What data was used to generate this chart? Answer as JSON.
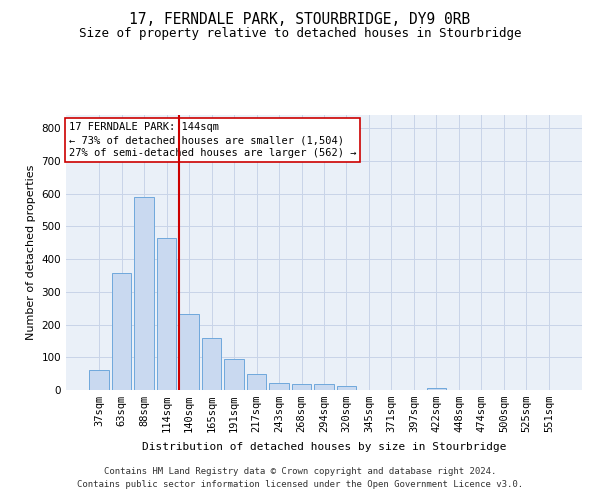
{
  "title": "17, FERNDALE PARK, STOURBRIDGE, DY9 0RB",
  "subtitle": "Size of property relative to detached houses in Stourbridge",
  "xlabel": "Distribution of detached houses by size in Stourbridge",
  "ylabel": "Number of detached properties",
  "categories": [
    "37sqm",
    "63sqm",
    "88sqm",
    "114sqm",
    "140sqm",
    "165sqm",
    "191sqm",
    "217sqm",
    "243sqm",
    "268sqm",
    "294sqm",
    "320sqm",
    "345sqm",
    "371sqm",
    "397sqm",
    "422sqm",
    "448sqm",
    "474sqm",
    "500sqm",
    "525sqm",
    "551sqm"
  ],
  "values": [
    60,
    358,
    590,
    465,
    232,
    160,
    95,
    48,
    22,
    18,
    18,
    13,
    0,
    0,
    0,
    5,
    0,
    0,
    0,
    0,
    0
  ],
  "bar_color": "#c9d9f0",
  "bar_edge_color": "#6fa8dc",
  "highlight_line_color": "#cc0000",
  "highlight_bar_index": 4,
  "annotation_line1": "17 FERNDALE PARK: 144sqm",
  "annotation_line2": "← 73% of detached houses are smaller (1,504)",
  "annotation_line3": "27% of semi-detached houses are larger (562) →",
  "annotation_box_color": "#cc0000",
  "ylim": [
    0,
    840
  ],
  "yticks": [
    0,
    100,
    200,
    300,
    400,
    500,
    600,
    700,
    800
  ],
  "grid_color": "#c8d4e8",
  "background_color": "#eaf0f8",
  "footer_line1": "Contains HM Land Registry data © Crown copyright and database right 2024.",
  "footer_line2": "Contains public sector information licensed under the Open Government Licence v3.0.",
  "title_fontsize": 10.5,
  "subtitle_fontsize": 9,
  "axis_label_fontsize": 8,
  "tick_fontsize": 7.5,
  "annotation_fontsize": 7.5,
  "footer_fontsize": 6.5
}
